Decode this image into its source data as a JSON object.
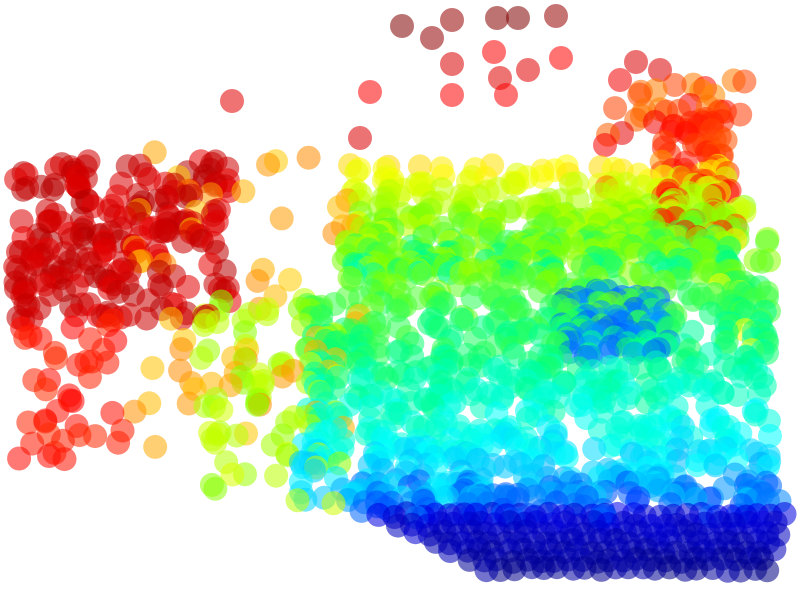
{
  "colormap": [
    "#00007f",
    "#0000ff",
    "#0080ff",
    "#00ffff",
    "#00ff80",
    "#80ff00",
    "#ffff00",
    "#ff8000",
    "#ff0000",
    "#7f0000"
  ],
  "point_opacity": 0.55,
  "background": "#ffffff"
}
